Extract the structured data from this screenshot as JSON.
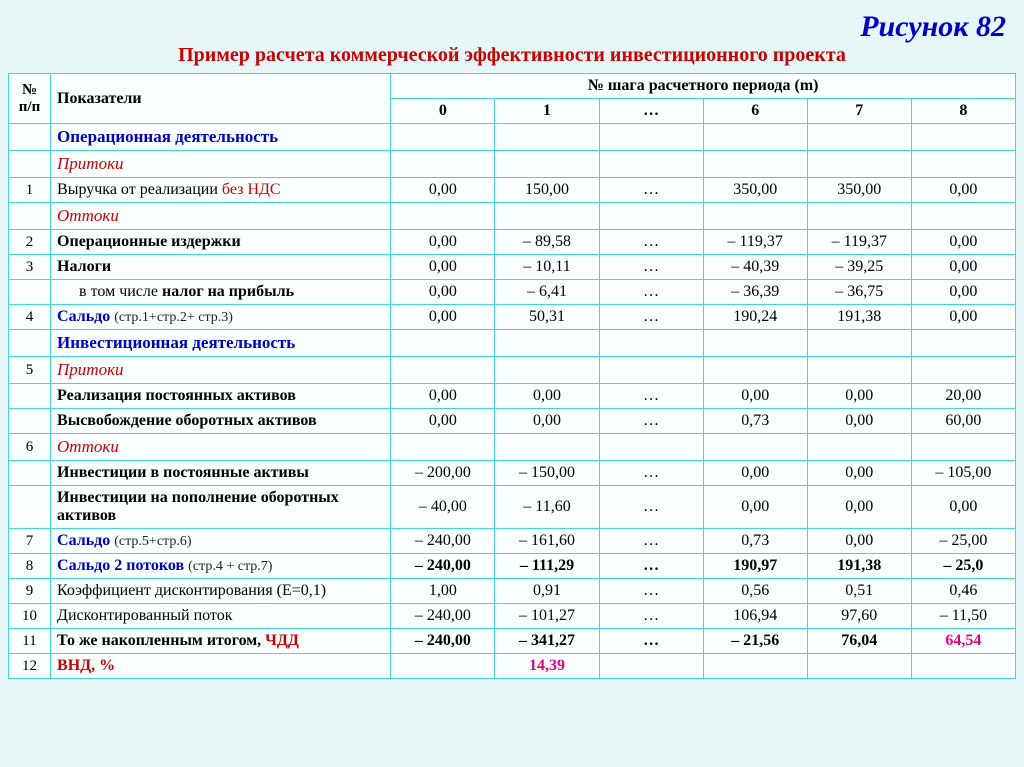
{
  "figure": {
    "title": "Рисунок 82"
  },
  "subtitle": "Пример расчета коммерческой эффективности инвестиционного проекта",
  "headers": {
    "num": "№ п/п",
    "indicator": "Показатели",
    "step_group": "№ шага расчетного периода (m)",
    "steps": [
      "0",
      "1",
      "…",
      "6",
      "7",
      "8"
    ]
  },
  "rows": [
    {
      "type": "section",
      "label": "Операционная деятельность"
    },
    {
      "type": "sub_inflow",
      "label": "Притоки"
    },
    {
      "num": "1",
      "label_parts": [
        {
          "t": "Выручка от реализации  "
        },
        {
          "t": "без НДС",
          "cls": "red-text"
        }
      ],
      "vals": [
        "0,00",
        "150,00",
        "…",
        "350,00",
        "350,00",
        "0,00"
      ]
    },
    {
      "type": "sub_outflow",
      "label": "Оттоки"
    },
    {
      "num": "2",
      "label": "Операционные издержки",
      "bold": true,
      "vals": [
        "0,00",
        "– 89,58",
        "…",
        "– 119,37",
        "– 119,37",
        "0,00"
      ]
    },
    {
      "num": "3",
      "label": "Налоги",
      "bold": true,
      "vals": [
        "0,00",
        "– 10,11",
        "…",
        "– 40,39",
        "– 39,25",
        "0,00"
      ]
    },
    {
      "num": "",
      "label_parts": [
        {
          "t": "в том числе ",
          "cls": ""
        },
        {
          "t": "налог на прибыль",
          "cls": "bold"
        }
      ],
      "indent": true,
      "vals": [
        "0,00",
        "–  6,41",
        "…",
        "– 36,39",
        "– 36,75",
        "0,00"
      ]
    },
    {
      "num": "4",
      "label_parts": [
        {
          "t": "Сальдо ",
          "cls": "blue-text bold"
        },
        {
          "t": "(стр.1+стр.2+ стр.3)",
          "cls": "small-note"
        }
      ],
      "vals": [
        "0,00",
        "50,31",
        "…",
        "190,24",
        "191,38",
        "0,00"
      ]
    },
    {
      "type": "section",
      "label": "Инвестиционная деятельность"
    },
    {
      "num": "5",
      "type": "sub_inflow_num",
      "label": "Притоки"
    },
    {
      "num": "",
      "label": "Реализация постоянных активов",
      "bold": true,
      "vals": [
        "0,00",
        "0,00",
        "…",
        "0,00",
        "0,00",
        "20,00"
      ]
    },
    {
      "num": "",
      "label": "Высвобождение оборотных активов",
      "bold": true,
      "vals": [
        "0,00",
        "0,00",
        "…",
        "0,73",
        "0,00",
        "60,00"
      ]
    },
    {
      "num": "6",
      "type": "sub_outflow_num",
      "label": "Оттоки"
    },
    {
      "num": "",
      "label": "Инвестиции в постоянные  активы",
      "bold": true,
      "vals": [
        "– 200,00",
        "– 150,00",
        "…",
        "0,00",
        "0,00",
        "– 105,00"
      ]
    },
    {
      "num": "",
      "label": "Инвестиции на пополнение оборотных активов",
      "bold": true,
      "vals": [
        "– 40,00",
        "– 11,60",
        "…",
        "0,00",
        "0,00",
        "0,00"
      ]
    },
    {
      "num": "7",
      "label_parts": [
        {
          "t": "Сальдо ",
          "cls": "blue-text bold"
        },
        {
          "t": "(стр.5+стр.6)",
          "cls": "small-note"
        }
      ],
      "vals": [
        "– 240,00",
        "– 161,60",
        "…",
        "0,73",
        "0,00",
        "– 25,00"
      ]
    },
    {
      "num": "8",
      "label_parts": [
        {
          "t": "Сальдо 2 потоков ",
          "cls": "blue-text bold"
        },
        {
          "t": "(стр.4 + стр.7)",
          "cls": "small-note"
        }
      ],
      "boldrow": true,
      "vals": [
        "– 240,00",
        "– 111,29",
        "…",
        "190,97",
        "191,38",
        "– 25,0"
      ]
    },
    {
      "num": "9",
      "label": "Коэффициент дисконтирования (Е=0,1)",
      "vals": [
        "1,00",
        "0,91",
        "…",
        "0,56",
        "0,51",
        "0,46"
      ]
    },
    {
      "num": "10",
      "label": "Дисконтированный поток",
      "vals": [
        "– 240,00",
        "– 101,27",
        "…",
        "106,94",
        "97,60",
        "–  11,50"
      ]
    },
    {
      "num": "11",
      "label_parts": [
        {
          "t": "То же накопленным итогом, ",
          "cls": "bold"
        },
        {
          "t": "ЧДД",
          "cls": "red-text bold"
        }
      ],
      "boldrow": true,
      "vals": [
        "– 240,00",
        "– 341,27",
        "…",
        "– 21,56",
        "76,04",
        {
          "t": "64,54",
          "cls": "pink-text"
        }
      ]
    },
    {
      "num": "12",
      "label_parts": [
        {
          "t": "ВНД, %",
          "cls": "red-text bold"
        }
      ],
      "vals": [
        "",
        {
          "t": "14,39",
          "cls": "pink-text"
        },
        "",
        "",
        "",
        ""
      ]
    }
  ]
}
